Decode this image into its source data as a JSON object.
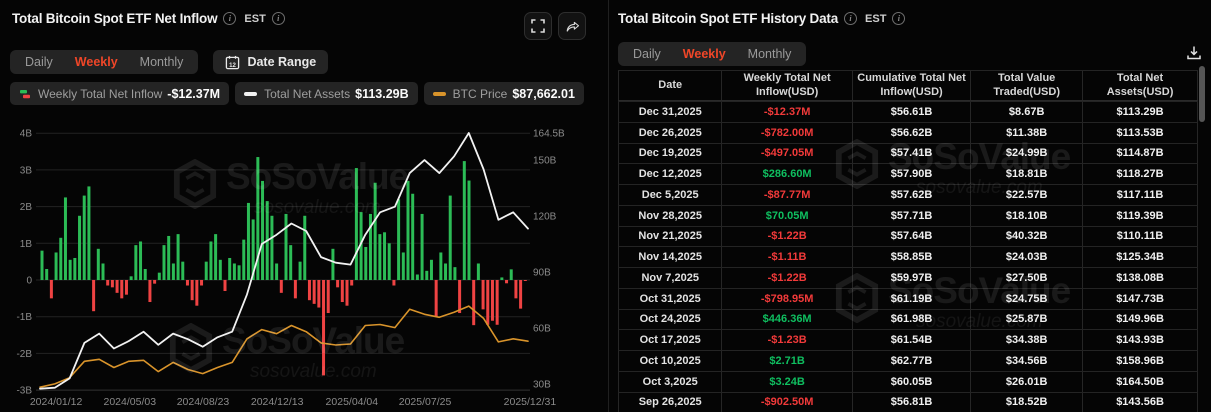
{
  "left_panel": {
    "title": "Total Bitcoin Spot ETF Net Inflow",
    "est_label": "EST",
    "tabs": [
      "Daily",
      "Weekly",
      "Monthly"
    ],
    "active_tab": "Weekly",
    "date_range_label": "Date Range",
    "toolbar_icons": [
      "fullscreen-icon",
      "share-icon"
    ],
    "legend": [
      {
        "icon": "inflow-bars-icon",
        "label": "Weekly Total Net Inflow",
        "value": "-$12.37M"
      },
      {
        "icon": "white-dash-icon",
        "label": "Total Net Assets",
        "value": "$113.29B"
      },
      {
        "icon": "orange-dash-icon",
        "label": "BTC Price",
        "value": "$87,662.01"
      }
    ]
  },
  "right_panel": {
    "title": "Total Bitcoin Spot ETF History Data",
    "est_label": "EST",
    "tabs": [
      "Daily",
      "Weekly",
      "Monthly"
    ],
    "active_tab": "Weekly",
    "download_icon": "download-icon",
    "table": {
      "columns": [
        "Date",
        "Weekly Total Net Inflow(USD)",
        "Cumulative Total Net Inflow(USD)",
        "Total Value Traded(USD)",
        "Total Net Assets(USD)"
      ],
      "rows": [
        {
          "date": "Dec 31,2025",
          "inflow": "-$12.37M",
          "cumulative": "$56.61B",
          "traded": "$8.67B",
          "assets": "$113.29B"
        },
        {
          "date": "Dec 26,2025",
          "inflow": "-$782.00M",
          "cumulative": "$56.62B",
          "traded": "$11.38B",
          "assets": "$113.53B"
        },
        {
          "date": "Dec 19,2025",
          "inflow": "-$497.05M",
          "cumulative": "$57.41B",
          "traded": "$24.99B",
          "assets": "$114.87B"
        },
        {
          "date": "Dec 12,2025",
          "inflow": "$286.60M",
          "cumulative": "$57.90B",
          "traded": "$18.81B",
          "assets": "$118.27B"
        },
        {
          "date": "Dec 5,2025",
          "inflow": "-$87.77M",
          "cumulative": "$57.62B",
          "traded": "$22.57B",
          "assets": "$117.11B"
        },
        {
          "date": "Nov 28,2025",
          "inflow": "$70.05M",
          "cumulative": "$57.71B",
          "traded": "$18.10B",
          "assets": "$119.39B"
        },
        {
          "date": "Nov 21,2025",
          "inflow": "-$1.22B",
          "cumulative": "$57.64B",
          "traded": "$40.32B",
          "assets": "$110.11B"
        },
        {
          "date": "Nov 14,2025",
          "inflow": "-$1.11B",
          "cumulative": "$58.85B",
          "traded": "$24.03B",
          "assets": "$125.34B"
        },
        {
          "date": "Nov 7,2025",
          "inflow": "-$1.22B",
          "cumulative": "$59.97B",
          "traded": "$27.50B",
          "assets": "$138.08B"
        },
        {
          "date": "Oct 31,2025",
          "inflow": "-$798.95M",
          "cumulative": "$61.19B",
          "traded": "$24.75B",
          "assets": "$147.73B"
        },
        {
          "date": "Oct 24,2025",
          "inflow": "$446.36M",
          "cumulative": "$61.98B",
          "traded": "$25.87B",
          "assets": "$149.96B"
        },
        {
          "date": "Oct 17,2025",
          "inflow": "-$1.23B",
          "cumulative": "$61.54B",
          "traded": "$34.38B",
          "assets": "$143.93B"
        },
        {
          "date": "Oct 10,2025",
          "inflow": "$2.71B",
          "cumulative": "$62.77B",
          "traded": "$34.56B",
          "assets": "$158.96B"
        },
        {
          "date": "Oct 3,2025",
          "inflow": "$3.24B",
          "cumulative": "$60.05B",
          "traded": "$26.01B",
          "assets": "$164.50B"
        },
        {
          "date": "Sep 26,2025",
          "inflow": "-$902.50M",
          "cumulative": "$56.81B",
          "traded": "$18.52B",
          "assets": "$143.56B"
        }
      ]
    }
  },
  "watermark": {
    "brand": "SoSoValue",
    "domain": "sosovalue.com"
  },
  "colors": {
    "accent_red": "#f04628",
    "positive_green": "#0fbf60",
    "negative_red": "#f23a3a",
    "chart_green": "#2cbc56",
    "chart_red": "#ef4343",
    "btc_orange": "#d9942b",
    "assets_white": "#f2f2f2",
    "grid": "#232323",
    "axis_text": "#8b8b8b"
  },
  "chart_data": {
    "type": "bar",
    "title": "Total Bitcoin Spot ETF Net Inflow (Weekly)",
    "x_ticks": [
      "2024/01/12",
      "2024/05/03",
      "2024/08/23",
      "2024/12/13",
      "2025/04/04",
      "2025/07/25",
      "2025/12/31"
    ],
    "left_axis_ticks": [
      "4B",
      "3B",
      "2B",
      "1B",
      "0",
      "-1B",
      "-2B",
      "-3B"
    ],
    "left_axis_values": [
      4,
      3,
      2,
      1,
      0,
      -1,
      -2,
      -3
    ],
    "left_ylim": [
      -3,
      4
    ],
    "right_axis_ticks": [
      "164.5B",
      "150B",
      "120B",
      "90B",
      "60B",
      "30B"
    ],
    "right_axis_values": [
      164.5,
      150,
      120,
      90,
      60,
      30
    ],
    "grid": true,
    "legend_position": "top",
    "bar_series": {
      "name": "Weekly Total Net Inflow (USD B)",
      "start_date": "2024/01/12",
      "interval": "weekly",
      "values": [
        0.8,
        0.3,
        -0.5,
        0.75,
        1.15,
        2.25,
        0.55,
        0.6,
        1.75,
        2.3,
        2.55,
        -0.85,
        0.85,
        0.45,
        -0.15,
        -0.2,
        -0.35,
        -0.5,
        -0.4,
        0.1,
        0.95,
        1.05,
        0.3,
        -0.6,
        -0.1,
        0.2,
        0.95,
        1.2,
        0.45,
        1.25,
        0.5,
        -0.15,
        -0.55,
        -0.7,
        -0.15,
        0.5,
        1.05,
        1.25,
        0.55,
        -0.3,
        0.6,
        0.45,
        0.4,
        1.1,
        2.1,
        1.65,
        3.35,
        2.7,
        2.15,
        1.75,
        0.45,
        -0.35,
        1.8,
        0.95,
        -0.5,
        0.5,
        1.75,
        -0.55,
        -0.65,
        -0.75,
        -2.6,
        -0.9,
        0.85,
        -0.2,
        -0.6,
        -0.7,
        -0.15,
        3.05,
        1.85,
        0.9,
        1.8,
        2.65,
        1.25,
        1.3,
        1.0,
        -0.15,
        2.2,
        0.75,
        2.7,
        2.35,
        0.15,
        1.8,
        0.25,
        0.55,
        -1.0,
        0.75,
        0.45,
        2.3,
        0.35,
        -0.9,
        3.24,
        2.71,
        -1.23,
        0.45,
        -0.8,
        -1.22,
        -1.11,
        -1.22,
        0.07,
        -0.09,
        0.29,
        -0.5,
        -0.78,
        -0.01
      ]
    },
    "line_series": [
      {
        "name": "Total Net Assets (USD B)",
        "axis": "right",
        "values": [
          27.5,
          28,
          33,
          52,
          57,
          49,
          53,
          58,
          51,
          57,
          54,
          50,
          55,
          58,
          78,
          105,
          110,
          116,
          112,
          98,
          95,
          94,
          110,
          122,
          125,
          143,
          150,
          143,
          152,
          164.5,
          145,
          118,
          122,
          113.29
        ]
      },
      {
        "name": "BTC Price (USD k)",
        "axis": "hidden",
        "values": [
          42.7,
          46,
          52,
          68,
          70,
          62,
          68,
          69,
          58,
          67,
          60,
          56,
          62,
          67,
          90,
          99,
          95,
          103,
          97,
          86,
          84,
          85,
          103,
          104,
          101,
          119,
          114,
          111,
          116,
          122,
          110,
          87,
          90,
          87.66
        ]
      }
    ]
  }
}
